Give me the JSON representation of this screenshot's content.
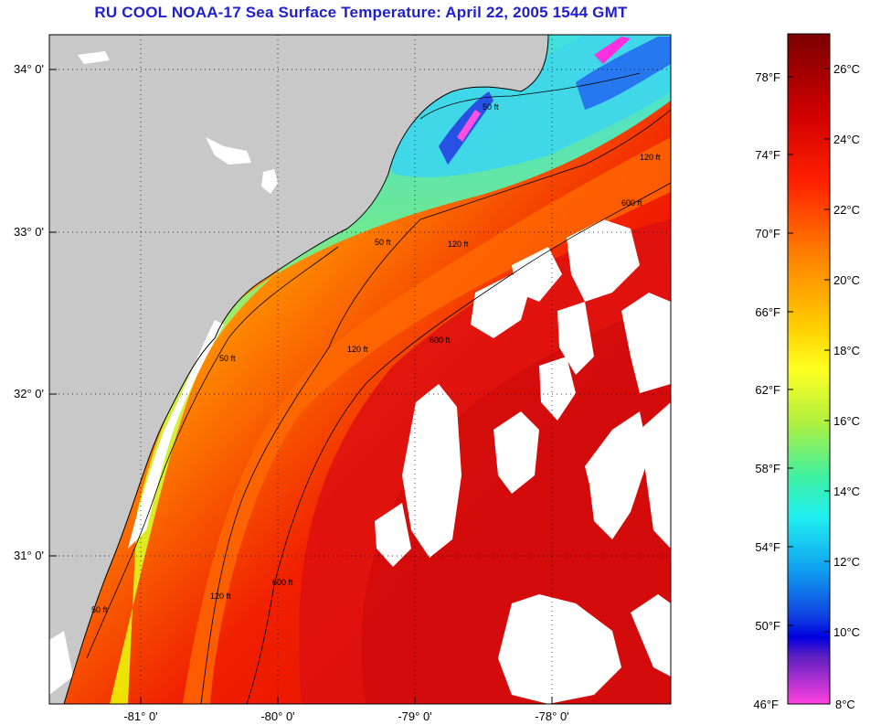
{
  "title": "RU COOL  NOAA-17  Sea Surface Temperature:  April 22, 2005 1544 GMT",
  "map": {
    "lat_labels": [
      "34° 0'",
      "33° 0'",
      "32° 0'",
      "31° 0'"
    ],
    "lon_labels": [
      "-81° 0'",
      "-80° 0'",
      "-79° 0'",
      "-78° 0'"
    ],
    "contours": [
      "50 ft",
      "120 ft",
      "600 ft"
    ],
    "colors": {
      "land": "#c8c8c8",
      "cloud": "#ffffff",
      "coast": "#000000"
    }
  },
  "colorbar": {
    "f_labels": [
      "78°F",
      "74°F",
      "70°F",
      "66°F",
      "62°F",
      "58°F",
      "54°F",
      "50°F",
      "46°F"
    ],
    "c_labels": [
      "26°C",
      "24°C",
      "22°C",
      "20°C",
      "18°C",
      "16°C",
      "14°C",
      "12°C",
      "10°C",
      "8°C"
    ]
  }
}
